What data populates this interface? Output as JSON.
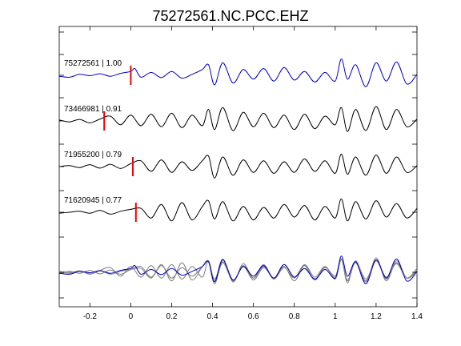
{
  "chart_data": {
    "type": "line",
    "title": "75272561.NC.PCC.EHZ",
    "xlabel": "",
    "ylabel": "",
    "xlim": [
      -0.35,
      1.4
    ],
    "xticks": [
      -0.2,
      0,
      0.2,
      0.4,
      0.6,
      0.8,
      1,
      1.2,
      1.4
    ],
    "xtick_labels": [
      "-0.2",
      "0",
      "0.2",
      "0.4",
      "0.6",
      "0.8",
      "1",
      "1.2",
      "1.4"
    ],
    "grid": false,
    "colors": {
      "primary": "#0000cc",
      "other": "#000000",
      "pick": "#ee0000",
      "overlay": "#808080"
    },
    "series": [
      {
        "name": "75272561 | 1.00",
        "color": "#0000cc",
        "pick_time": 0.0,
        "x": [
          -0.35,
          -0.3,
          -0.25,
          -0.2,
          -0.15,
          -0.1,
          -0.05,
          0,
          0.02,
          0.05,
          0.1,
          0.15,
          0.2,
          0.25,
          0.3,
          0.35,
          0.38,
          0.41,
          0.45,
          0.5,
          0.55,
          0.6,
          0.65,
          0.7,
          0.75,
          0.8,
          0.85,
          0.9,
          0.95,
          1,
          1.03,
          1.06,
          1.1,
          1.15,
          1.2,
          1.25,
          1.3,
          1.35,
          1.4
        ],
        "y": [
          -0.05,
          -0.1,
          0.05,
          -0.02,
          0.08,
          -0.05,
          0.1,
          0.2,
          0.35,
          -0.1,
          0.15,
          -0.12,
          0.2,
          -0.15,
          0.05,
          0.3,
          0.55,
          -0.5,
          0.65,
          -0.4,
          0.3,
          -0.2,
          0.35,
          -0.3,
          0.4,
          -0.25,
          0.2,
          -0.35,
          0.15,
          -0.3,
          0.85,
          -0.2,
          0.55,
          -0.6,
          0.65,
          -0.3,
          0.7,
          -0.45,
          0.05
        ]
      },
      {
        "name": "73466981 | 0.91",
        "color": "#000000",
        "pick_time": -0.13,
        "x": [
          -0.35,
          -0.3,
          -0.25,
          -0.2,
          -0.15,
          -0.1,
          -0.05,
          0,
          0.05,
          0.1,
          0.15,
          0.2,
          0.25,
          0.3,
          0.35,
          0.38,
          0.41,
          0.45,
          0.5,
          0.55,
          0.6,
          0.65,
          0.7,
          0.75,
          0.8,
          0.85,
          0.9,
          0.95,
          1,
          1.03,
          1.06,
          1.1,
          1.15,
          1.2,
          1.25,
          1.3,
          1.35,
          1.4
        ],
        "y": [
          0.05,
          -0.05,
          0.08,
          -0.1,
          0.1,
          0.25,
          -0.2,
          0.3,
          -0.25,
          0.35,
          -0.3,
          0.4,
          -0.35,
          0.3,
          -0.25,
          0.6,
          -0.45,
          0.7,
          -0.5,
          0.45,
          -0.3,
          0.4,
          -0.35,
          0.3,
          -0.45,
          0.35,
          -0.4,
          0.25,
          -0.2,
          0.7,
          -0.55,
          0.6,
          -0.5,
          0.75,
          -0.45,
          0.6,
          -0.3,
          0.1
        ]
      },
      {
        "name": "71955200 | 0.79",
        "color": "#000000",
        "pick_time": 0.01,
        "x": [
          -0.35,
          -0.3,
          -0.25,
          -0.2,
          -0.15,
          -0.1,
          -0.05,
          0,
          0.05,
          0.1,
          0.15,
          0.2,
          0.25,
          0.3,
          0.35,
          0.38,
          0.41,
          0.45,
          0.5,
          0.55,
          0.6,
          0.65,
          0.7,
          0.75,
          0.8,
          0.85,
          0.9,
          0.95,
          1,
          1.03,
          1.06,
          1.1,
          1.15,
          1.2,
          1.25,
          1.3,
          1.35,
          1.4
        ],
        "y": [
          0.0,
          0.05,
          -0.05,
          0.1,
          -0.08,
          0.12,
          -0.1,
          0.15,
          0.3,
          -0.25,
          0.35,
          -0.3,
          0.25,
          -0.2,
          0.3,
          0.55,
          -0.6,
          0.5,
          -0.45,
          0.35,
          -0.3,
          0.3,
          -0.35,
          0.25,
          -0.3,
          0.4,
          -0.25,
          0.3,
          -0.35,
          0.65,
          -0.4,
          0.5,
          -0.45,
          0.6,
          -0.35,
          0.5,
          -0.3,
          0.05
        ]
      },
      {
        "name": "71620945 | 0.77",
        "color": "#000000",
        "pick_time": 0.025,
        "x": [
          -0.35,
          -0.3,
          -0.25,
          -0.2,
          -0.15,
          -0.1,
          -0.05,
          0,
          0.05,
          0.1,
          0.15,
          0.2,
          0.25,
          0.3,
          0.35,
          0.38,
          0.41,
          0.45,
          0.5,
          0.55,
          0.6,
          0.65,
          0.7,
          0.75,
          0.8,
          0.85,
          0.9,
          0.95,
          1,
          1.03,
          1.06,
          1.1,
          1.15,
          1.2,
          1.25,
          1.3,
          1.35,
          1.4
        ],
        "y": [
          -0.05,
          0.0,
          0.05,
          -0.05,
          0.1,
          -0.1,
          0.05,
          0.15,
          0.2,
          -0.3,
          0.4,
          -0.45,
          0.5,
          -0.4,
          0.3,
          0.6,
          -0.35,
          0.55,
          -0.45,
          0.3,
          -0.4,
          0.25,
          -0.3,
          0.4,
          -0.25,
          0.35,
          -0.4,
          0.3,
          -0.3,
          0.7,
          -0.45,
          0.55,
          -0.35,
          0.6,
          -0.25,
          0.45,
          -0.3,
          0.2
        ]
      }
    ]
  }
}
